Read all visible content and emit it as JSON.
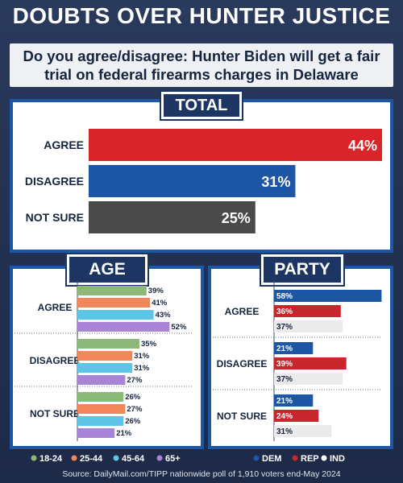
{
  "headline": "DOUBTS OVER HUNTER JUSTICE",
  "question": "Do you agree/disagree: Hunter Biden will get a fair trial on federal firearms charges in Delaware",
  "source": "Source: DailyMail.com/TIPP nationwide poll of 1,910 voters end-May 2024",
  "chart_data": [
    {
      "type": "bar",
      "title": "TOTAL",
      "categories": [
        "AGREE",
        "DISAGREE",
        "NOT SURE"
      ],
      "values": [
        44,
        31,
        25
      ],
      "value_labels": [
        "44%",
        "31%",
        "25%"
      ],
      "colors": [
        "#d9252a",
        "#1e56a6",
        "#4a4a4a"
      ],
      "xlim": [
        0,
        44
      ]
    },
    {
      "type": "bar",
      "title": "AGE",
      "categories": [
        "AGREE",
        "DISAGREE",
        "NOT SURE"
      ],
      "series": [
        {
          "name": "18-24",
          "color": "#8cb87a",
          "values": [
            39,
            35,
            26
          ],
          "labels": [
            "39%",
            "35%",
            "26%"
          ]
        },
        {
          "name": "25-44",
          "color": "#f0865a",
          "values": [
            41,
            31,
            27
          ],
          "labels": [
            "41%",
            "31%",
            "27%"
          ]
        },
        {
          "name": "45-64",
          "color": "#5ec4e8",
          "values": [
            43,
            31,
            26
          ],
          "labels": [
            "43%",
            "31%",
            "26%"
          ]
        },
        {
          "name": "65+",
          "color": "#a784d6",
          "values": [
            52,
            27,
            21
          ],
          "labels": [
            "52%",
            "27%",
            "21%"
          ]
        }
      ],
      "legend_position": "bottom"
    },
    {
      "type": "bar",
      "title": "PARTY",
      "categories": [
        "AGREE",
        "DISAGREE",
        "NOT SURE"
      ],
      "series": [
        {
          "name": "DEM",
          "color": "#1e56a6",
          "values": [
            58,
            21,
            21
          ],
          "labels": [
            "58%",
            "21%",
            "21%"
          ]
        },
        {
          "name": "REP",
          "color": "#c8262d",
          "values": [
            36,
            39,
            24
          ],
          "labels": [
            "36%",
            "39%",
            "24%"
          ]
        },
        {
          "name": "IND",
          "color": "#ebebeb",
          "values": [
            37,
            37,
            31
          ],
          "labels": [
            "37%",
            "37%",
            "31%"
          ]
        }
      ],
      "legend_position": "bottom"
    }
  ]
}
